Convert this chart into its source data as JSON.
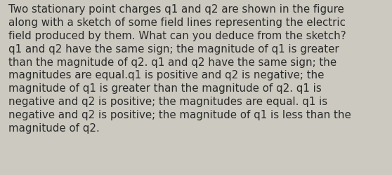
{
  "lines": [
    "Two stationary point charges q1 and q2 are shown in the figure",
    "along with a sketch of some field lines representing the electric",
    "field produced by them. What can you deduce from the sketch?",
    "q1 and q2 have the same sign; the magnitude of q1 is greater",
    "than the magnitude of q2. q1 and q2 have the same sign; the",
    "magnitudes are equal.q1 is positive and q2 is negative; the",
    "magnitude of q1 is greater than the magnitude of q2. q1 is",
    "negative and q2 is positive; the magnitudes are equal. q1 is",
    "negative and q2 is positive; the magnitude of q1 is less than the",
    "magnitude of q2."
  ],
  "background_color": "#cccac0",
  "text_color": "#2a2a2a",
  "font_size": 10.8,
  "fig_width": 5.58,
  "fig_height": 2.51,
  "dpi": 100
}
